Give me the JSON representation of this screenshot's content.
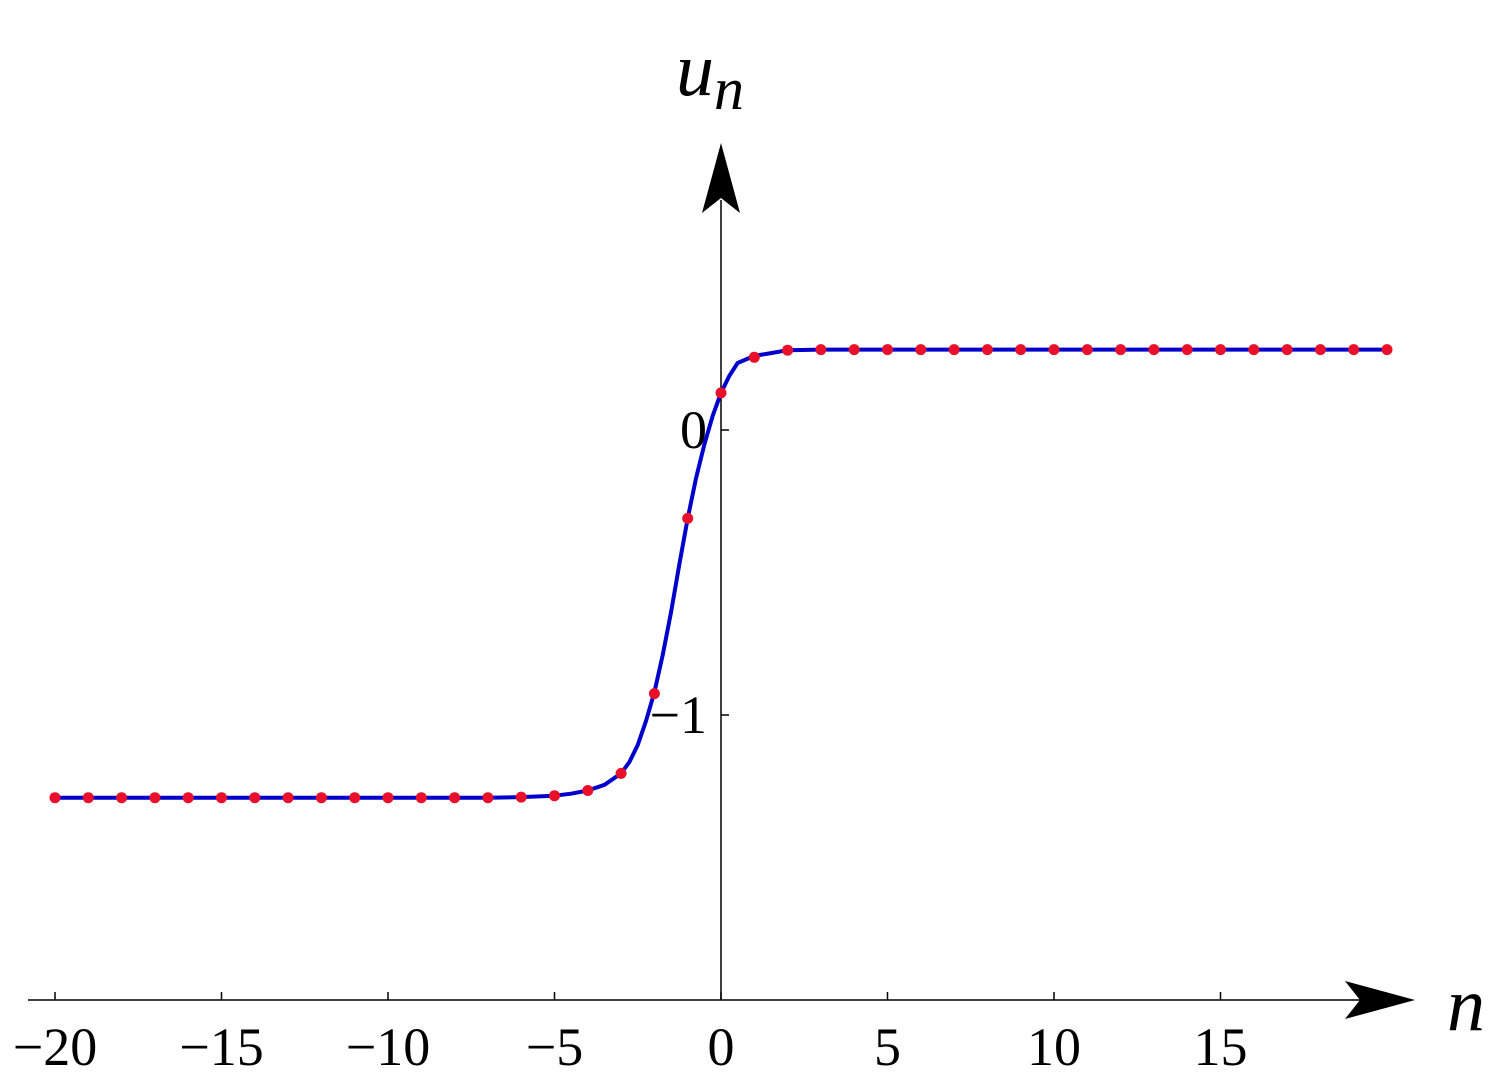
{
  "chart_data": {
    "type": "line",
    "title": "",
    "xlabel": "n",
    "ylabel": "u",
    "ylabel_subscript": "n",
    "xlim": [
      -20,
      20
    ],
    "ylim": [
      -2,
      1
    ],
    "x_ticks": [
      {
        "value": -20,
        "label": "−20"
      },
      {
        "value": -15,
        "label": "−15"
      },
      {
        "value": -10,
        "label": "−10"
      },
      {
        "value": -5,
        "label": "−5"
      },
      {
        "value": 0,
        "label": "0"
      },
      {
        "value": 5,
        "label": "5"
      },
      {
        "value": 10,
        "label": "10"
      },
      {
        "value": 15,
        "label": "15"
      }
    ],
    "y_ticks": [
      {
        "value": 0,
        "label": "0"
      },
      {
        "value": -1,
        "label": "−1"
      }
    ],
    "series": [
      {
        "style": "curve",
        "color": "#0000cc",
        "x": [
          -20,
          -19,
          -18,
          -17,
          -16,
          -15,
          -14,
          -13,
          -12,
          -11,
          -10,
          -9,
          -8,
          -7,
          -6,
          -5,
          -4.5,
          -4,
          -3.5,
          -3,
          -2.75,
          -2.5,
          -2.25,
          -2,
          -1.75,
          -1.5,
          -1.25,
          -1,
          -0.75,
          -0.5,
          -0.25,
          0,
          0.25,
          0.5,
          1,
          1.5,
          2,
          3,
          4,
          5,
          6,
          7,
          8,
          9,
          10,
          11,
          12,
          13,
          14,
          15,
          16,
          17,
          18,
          19,
          20
        ],
        "y": [
          -1.29,
          -1.29,
          -1.29,
          -1.29,
          -1.29,
          -1.29,
          -1.29,
          -1.29,
          -1.29,
          -1.29,
          -1.29,
          -1.29,
          -1.29,
          -1.29,
          -1.288,
          -1.283,
          -1.276,
          -1.265,
          -1.245,
          -1.205,
          -1.165,
          -1.105,
          -1.02,
          -0.92,
          -0.79,
          -0.64,
          -0.47,
          -0.31,
          -0.17,
          -0.05,
          0.05,
          0.13,
          0.19,
          0.235,
          0.26,
          0.27,
          0.28,
          0.282,
          0.282,
          0.282,
          0.282,
          0.282,
          0.282,
          0.282,
          0.282,
          0.282,
          0.282,
          0.282,
          0.282,
          0.282,
          0.282,
          0.282,
          0.282,
          0.282,
          0.282
        ]
      },
      {
        "style": "points",
        "color": "#e8102a",
        "x": [
          -20,
          -19,
          -18,
          -17,
          -16,
          -15,
          -14,
          -13,
          -12,
          -11,
          -10,
          -9,
          -8,
          -7,
          -6,
          -5,
          -4,
          -3,
          -2,
          -1,
          0,
          1,
          2,
          3,
          4,
          5,
          6,
          7,
          8,
          9,
          10,
          11,
          12,
          13,
          14,
          15,
          16,
          17,
          18,
          19,
          20
        ],
        "y": [
          -1.29,
          -1.29,
          -1.29,
          -1.29,
          -1.29,
          -1.29,
          -1.29,
          -1.29,
          -1.29,
          -1.29,
          -1.29,
          -1.29,
          -1.29,
          -1.29,
          -1.288,
          -1.283,
          -1.265,
          -1.205,
          -0.925,
          -0.31,
          0.13,
          0.255,
          0.28,
          0.282,
          0.282,
          0.282,
          0.282,
          0.282,
          0.282,
          0.282,
          0.282,
          0.282,
          0.282,
          0.282,
          0.282,
          0.282,
          0.282,
          0.282,
          0.282,
          0.282,
          0.282
        ]
      }
    ]
  }
}
